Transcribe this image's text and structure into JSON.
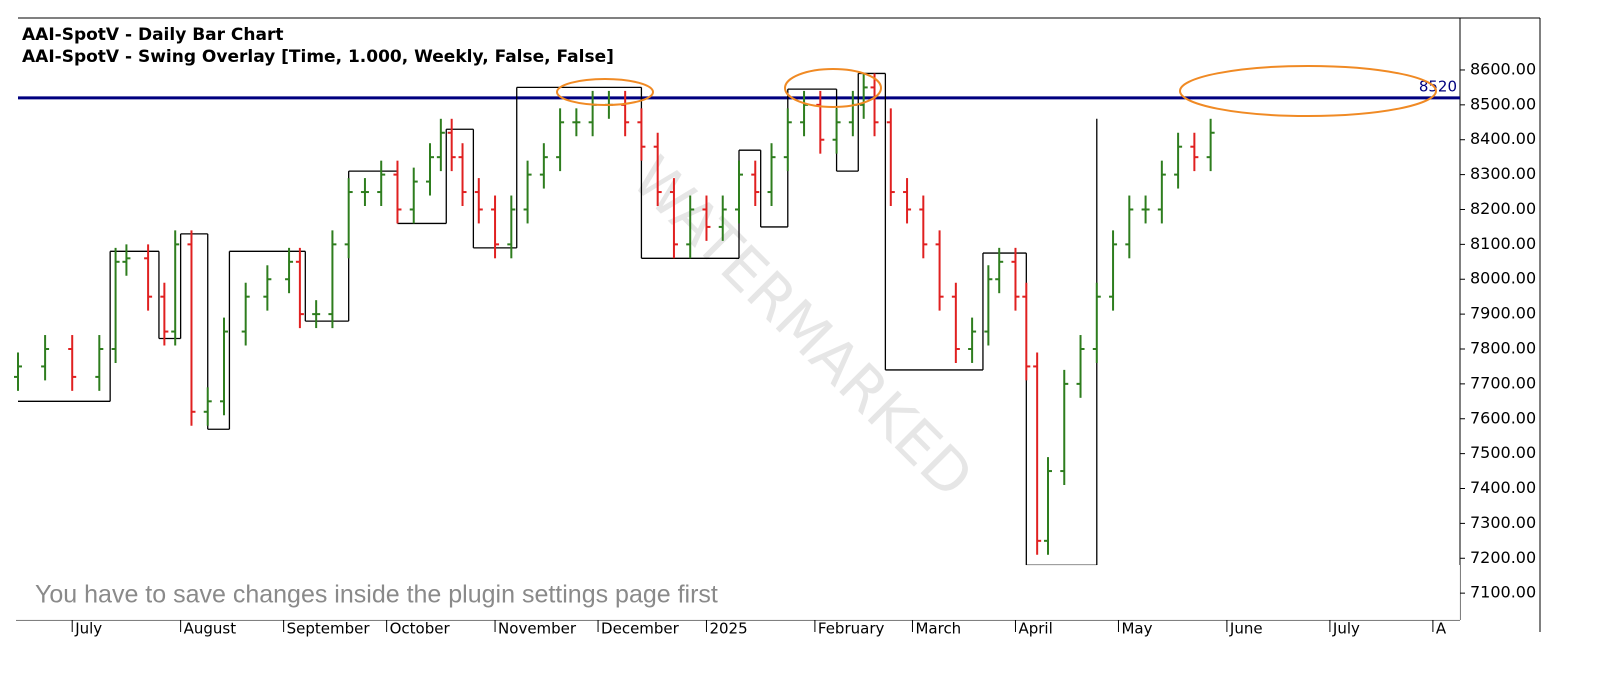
{
  "chart_data": {
    "type": "ohlc",
    "title": "AAI-SpotV - Daily Bar Chart",
    "subtitle": "AAI-SpotV - Swing Overlay [Time, 1.000, Weekly, False, False]",
    "notice": "You have to save changes inside the plugin settings page first",
    "watermark": "WATERMARKED",
    "up_color": "#2e7d1e",
    "down_color": "#e02020",
    "swing_color": "#000000",
    "xlim": [
      0,
      266
    ],
    "xticks": [
      {
        "value": 10,
        "label": "July"
      },
      {
        "value": 30,
        "label": "August"
      },
      {
        "value": 49,
        "label": "September"
      },
      {
        "value": 68,
        "label": "October"
      },
      {
        "value": 88,
        "label": "November"
      },
      {
        "value": 107,
        "label": "December"
      },
      {
        "value": 127,
        "label": "2025"
      },
      {
        "value": 147,
        "label": "February"
      },
      {
        "value": 165,
        "label": "March"
      },
      {
        "value": 184,
        "label": "April"
      },
      {
        "value": 203,
        "label": "May"
      },
      {
        "value": 223,
        "label": "June"
      },
      {
        "value": 242,
        "label": "July"
      },
      {
        "value": 261,
        "label": "A"
      }
    ],
    "ylim": [
      7023,
      8749
    ],
    "yticks": [
      {
        "value": 7100,
        "label": "7100.00"
      },
      {
        "value": 7200,
        "label": "7200.00"
      },
      {
        "value": 7300,
        "label": "7300.00"
      },
      {
        "value": 7400,
        "label": "7400.00"
      },
      {
        "value": 7500,
        "label": "7500.00"
      },
      {
        "value": 7600,
        "label": "7600.00"
      },
      {
        "value": 7700,
        "label": "7700.00"
      },
      {
        "value": 7800,
        "label": "7800.00"
      },
      {
        "value": 7900,
        "label": "7900.00"
      },
      {
        "value": 8000,
        "label": "8000.00"
      },
      {
        "value": 8100,
        "label": "8100.00"
      },
      {
        "value": 8200,
        "label": "8200.00"
      },
      {
        "value": 8300,
        "label": "8300.00"
      },
      {
        "value": 8400,
        "label": "8400.00"
      },
      {
        "value": 8500,
        "label": "8500.00"
      },
      {
        "value": 8600,
        "label": "8600.00"
      }
    ],
    "hline": {
      "value": 8520,
      "color": "#00007f"
    },
    "x": [
      0,
      5,
      10,
      15,
      18,
      20,
      24,
      27,
      29,
      32,
      35,
      38,
      42,
      46,
      50,
      52,
      55,
      58,
      61,
      64,
      67,
      70,
      73,
      76,
      78,
      80,
      82,
      85,
      88,
      91,
      94,
      97,
      100,
      103,
      106,
      109,
      112,
      115,
      118,
      121,
      124,
      127,
      130,
      133,
      136,
      139,
      142,
      145,
      148,
      151,
      154,
      156,
      158,
      161,
      164,
      167,
      170,
      173,
      176,
      179,
      181,
      184,
      186,
      188,
      190,
      193,
      196,
      199,
      202,
      205,
      208,
      211,
      214,
      217,
      220
    ],
    "open": [
      7720,
      7750,
      7800,
      7720,
      7800,
      8050,
      8060,
      7950,
      7850,
      8100,
      7620,
      7650,
      7850,
      7950,
      8000,
      8050,
      7900,
      7900,
      8100,
      8250,
      8250,
      8300,
      8200,
      8280,
      8350,
      8420,
      8350,
      8250,
      8200,
      8100,
      8200,
      8300,
      8350,
      8450,
      8450,
      8500,
      8500,
      8450,
      8380,
      8250,
      8100,
      8200,
      8150,
      8200,
      8300,
      8250,
      8350,
      8450,
      8500,
      8400,
      8450,
      8500,
      8550,
      8450,
      8250,
      8200,
      8100,
      7950,
      7800,
      7850,
      8000,
      8050,
      7950,
      7750,
      7250,
      7450,
      7700,
      7800,
      7950,
      8100,
      8200,
      8200,
      8300,
      8380,
      8350
    ],
    "high": [
      7790,
      7840,
      7840,
      7840,
      8090,
      8100,
      8100,
      7990,
      8140,
      8140,
      7690,
      7890,
      7990,
      8040,
      8090,
      8090,
      7940,
      8140,
      8290,
      8290,
      8340,
      8340,
      8320,
      8390,
      8460,
      8460,
      8390,
      8290,
      8240,
      8240,
      8340,
      8390,
      8490,
      8490,
      8540,
      8540,
      8540,
      8490,
      8420,
      8290,
      8240,
      8240,
      8240,
      8340,
      8340,
      8390,
      8490,
      8540,
      8540,
      8490,
      8540,
      8590,
      8590,
      8490,
      8290,
      8240,
      8140,
      7990,
      7890,
      8040,
      8090,
      8090,
      7990,
      7790,
      7490,
      7740,
      7840,
      7990,
      8140,
      8240,
      8240,
      8340,
      8420,
      8420,
      8460
    ],
    "low": [
      7680,
      7710,
      7680,
      7680,
      7760,
      8010,
      7910,
      7810,
      7810,
      7580,
      7580,
      7610,
      7810,
      7910,
      7960,
      7860,
      7860,
      7860,
      8060,
      8210,
      8210,
      8160,
      8160,
      8240,
      8310,
      8310,
      8210,
      8160,
      8060,
      8060,
      8160,
      8260,
      8310,
      8410,
      8410,
      8460,
      8410,
      8340,
      8210,
      8060,
      8060,
      8110,
      8110,
      8160,
      8210,
      8210,
      8310,
      8410,
      8360,
      8360,
      8410,
      8460,
      8410,
      8210,
      8160,
      8060,
      7910,
      7760,
      7760,
      7810,
      7960,
      7910,
      7710,
      7210,
      7210,
      7410,
      7660,
      7760,
      7910,
      8060,
      8160,
      8160,
      8260,
      8310,
      8310
    ],
    "close": [
      7750,
      7800,
      7720,
      7800,
      8050,
      8060,
      7950,
      7850,
      8100,
      7620,
      7650,
      7850,
      7950,
      8000,
      8050,
      7900,
      7900,
      8100,
      8250,
      8250,
      8300,
      8200,
      8280,
      8350,
      8420,
      8350,
      8250,
      8200,
      8100,
      8200,
      8300,
      8350,
      8450,
      8450,
      8500,
      8500,
      8450,
      8380,
      8250,
      8100,
      8200,
      8150,
      8200,
      8300,
      8250,
      8350,
      8450,
      8500,
      8400,
      8450,
      8500,
      8550,
      8450,
      8250,
      8200,
      8100,
      7950,
      7800,
      7850,
      8000,
      8050,
      7950,
      7750,
      7250,
      7450,
      7700,
      7800,
      7950,
      8100,
      8200,
      8200,
      8300,
      8380,
      8350,
      8420
    ],
    "swing": {
      "x": [
        0,
        17,
        26,
        30,
        35,
        39,
        53,
        61,
        70,
        79,
        84,
        92,
        115,
        133,
        137,
        142,
        151,
        155,
        160,
        178,
        186,
        199
      ],
      "y": [
        7650,
        8080,
        7830,
        8130,
        7570,
        8080,
        7880,
        8310,
        8160,
        8430,
        8090,
        8550,
        8060,
        8370,
        8150,
        8545,
        8310,
        8590,
        7740,
        8075,
        7180,
        8460
      ]
    }
  }
}
